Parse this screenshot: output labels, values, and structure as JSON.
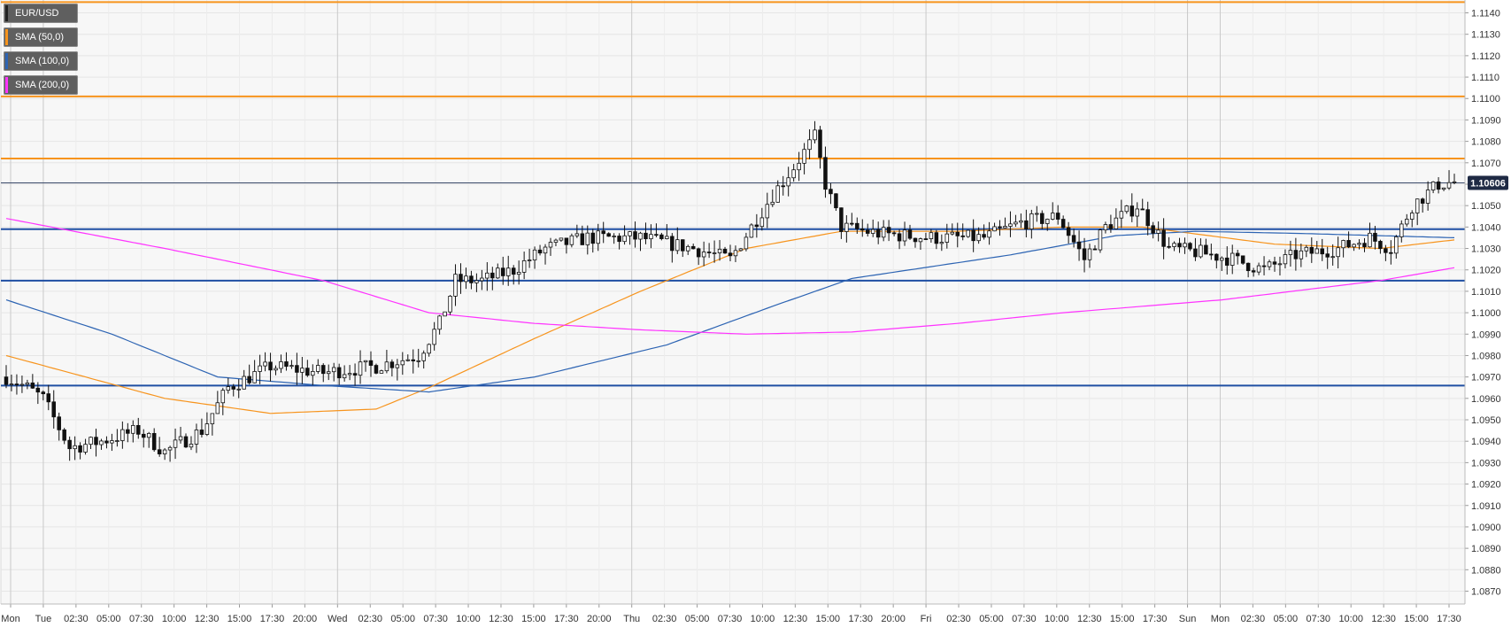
{
  "legend": [
    {
      "label": "EUR/USD",
      "color": "#222222"
    },
    {
      "label": "SMA (50,0)",
      "color": "#f7941d"
    },
    {
      "label": "SMA (100,0)",
      "color": "#2d64b3"
    },
    {
      "label": "SMA (200,0)",
      "color": "#ff33ff"
    }
  ],
  "price_badge": "1.10606",
  "chart_data": {
    "type": "candlestick",
    "symbol": "EUR/USD",
    "ylim": [
      1.0864,
      1.1146
    ],
    "y_ticks": [
      "1.1140",
      "1.1130",
      "1.1120",
      "1.1110",
      "1.1100",
      "1.1090",
      "1.1080",
      "1.1070",
      "1.1060",
      "1.1050",
      "1.1040",
      "1.1030",
      "1.1020",
      "1.1010",
      "1.1000",
      "1.0990",
      "1.0980",
      "1.0970",
      "1.0960",
      "1.0950",
      "1.0940",
      "1.0930",
      "1.0920",
      "1.0910",
      "1.0900",
      "1.0890",
      "1.0880",
      "1.0870"
    ],
    "x_ticks": [
      "Mon",
      "Tue",
      "02:30",
      "05:00",
      "07:30",
      "10:00",
      "12:30",
      "15:00",
      "17:30",
      "20:00",
      "Wed",
      "02:30",
      "05:00",
      "07:30",
      "10:00",
      "12:30",
      "15:00",
      "17:30",
      "20:00",
      "Thu",
      "02:30",
      "05:00",
      "07:30",
      "10:00",
      "12:30",
      "15:00",
      "17:30",
      "20:00",
      "Fri",
      "02:30",
      "05:00",
      "07:30",
      "10:00",
      "12:30",
      "15:00",
      "17:30",
      "Sun",
      "Mon",
      "02:30",
      "05:00",
      "07:30",
      "10:00",
      "12:30",
      "15:00",
      "17:30"
    ],
    "last_price": 1.10606,
    "horizontal_levels": [
      {
        "price": 1.1145,
        "color": "#f7941d"
      },
      {
        "price": 1.1101,
        "color": "#f7941d"
      },
      {
        "price": 1.1072,
        "color": "#f7941d"
      },
      {
        "price": 1.1039,
        "color": "#1f4fa3"
      },
      {
        "price": 1.1015,
        "color": "#1f4fa3"
      },
      {
        "price": 1.0966,
        "color": "#1f4fa3"
      }
    ],
    "close_anchors": [
      [
        0,
        1.097
      ],
      [
        4,
        1.0965
      ],
      [
        7,
        1.096
      ],
      [
        12,
        1.0937
      ],
      [
        18,
        1.094
      ],
      [
        25,
        1.0945
      ],
      [
        30,
        1.0935
      ],
      [
        37,
        1.0945
      ],
      [
        42,
        1.0965
      ],
      [
        50,
        1.0975
      ],
      [
        60,
        1.0972
      ],
      [
        70,
        1.0975
      ],
      [
        78,
        1.098
      ],
      [
        82,
        1.0995
      ],
      [
        85,
        1.1015
      ],
      [
        90,
        1.1015
      ],
      [
        96,
        1.102
      ],
      [
        102,
        1.103
      ],
      [
        110,
        1.1035
      ],
      [
        120,
        1.1035
      ],
      [
        130,
        1.103
      ],
      [
        137,
        1.1025
      ],
      [
        141,
        1.104
      ],
      [
        145,
        1.1055
      ],
      [
        149,
        1.1068
      ],
      [
        153,
        1.1082
      ],
      [
        155,
        1.106
      ],
      [
        158,
        1.104
      ],
      [
        165,
        1.1037
      ],
      [
        175,
        1.1035
      ],
      [
        185,
        1.1035
      ],
      [
        192,
        1.1042
      ],
      [
        199,
        1.1045
      ],
      [
        204,
        1.1025
      ],
      [
        208,
        1.104
      ],
      [
        214,
        1.105
      ],
      [
        220,
        1.103
      ],
      [
        226,
        1.1028
      ],
      [
        232,
        1.1025
      ],
      [
        238,
        1.102
      ],
      [
        244,
        1.1027
      ],
      [
        252,
        1.103
      ],
      [
        258,
        1.1035
      ],
      [
        262,
        1.103
      ],
      [
        266,
        1.105
      ],
      [
        271,
        1.106
      ],
      [
        274,
        1.1061
      ]
    ],
    "sma50": [
      [
        0,
        1.098
      ],
      [
        30,
        1.096
      ],
      [
        50,
        1.0953
      ],
      [
        70,
        1.0955
      ],
      [
        80,
        1.0965
      ],
      [
        100,
        1.0988
      ],
      [
        120,
        1.101
      ],
      [
        140,
        1.103
      ],
      [
        158,
        1.1038
      ],
      [
        180,
        1.1038
      ],
      [
        200,
        1.104
      ],
      [
        215,
        1.104
      ],
      [
        240,
        1.1032
      ],
      [
        260,
        1.103
      ],
      [
        274,
        1.1034
      ]
    ],
    "sma100": [
      [
        0,
        1.1006
      ],
      [
        20,
        1.099
      ],
      [
        40,
        1.097
      ],
      [
        60,
        1.0966
      ],
      [
        80,
        1.0963
      ],
      [
        100,
        1.097
      ],
      [
        125,
        1.0985
      ],
      [
        145,
        1.1003
      ],
      [
        160,
        1.1016
      ],
      [
        190,
        1.1027
      ],
      [
        210,
        1.1036
      ],
      [
        225,
        1.1038
      ],
      [
        245,
        1.1037
      ],
      [
        274,
        1.1035
      ]
    ],
    "sma200": [
      [
        0,
        1.1044
      ],
      [
        30,
        1.103
      ],
      [
        60,
        1.1015
      ],
      [
        80,
        1.1
      ],
      [
        100,
        1.0995
      ],
      [
        120,
        1.0992
      ],
      [
        140,
        1.099
      ],
      [
        160,
        1.0991
      ],
      [
        180,
        1.0995
      ],
      [
        200,
        1.1
      ],
      [
        230,
        1.1006
      ],
      [
        260,
        1.1015
      ],
      [
        274,
        1.1021
      ]
    ]
  }
}
